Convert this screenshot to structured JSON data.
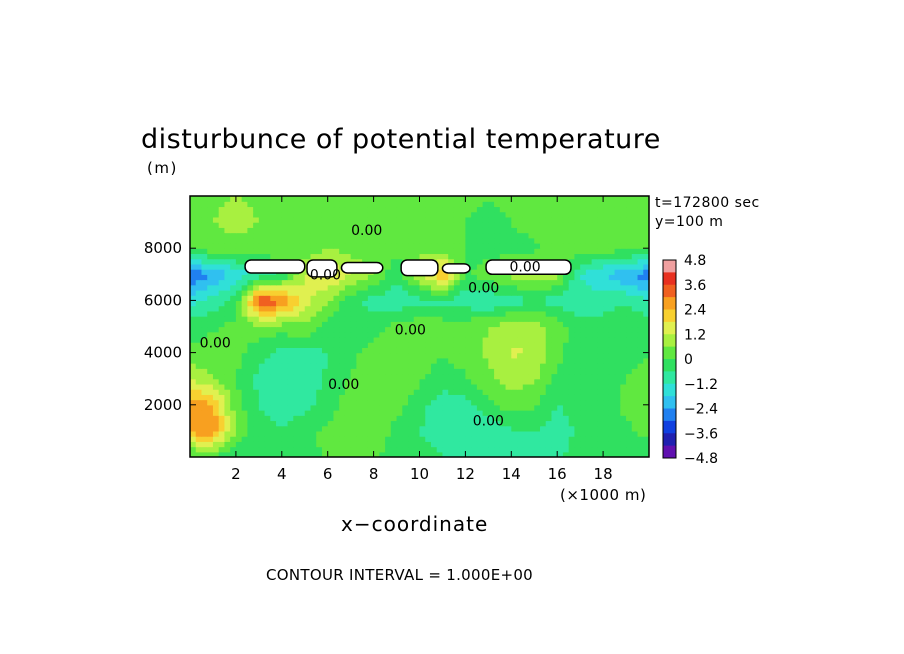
{
  "chart_data": {
    "type": "heatmap",
    "title": "disturbunce of potential temperature",
    "ylabel": "(m)",
    "xlabel": "x−coordinate",
    "xunit_label": "(×1000 m)",
    "annotations": [
      "t=172800 sec",
      "y=100 m"
    ],
    "footer": "CONTOUR INTERVAL = 1.000E+00",
    "xlim": [
      0,
      20000
    ],
    "ylim": [
      0,
      10000
    ],
    "x_ticks": [
      {
        "value": 2000,
        "label": "2"
      },
      {
        "value": 4000,
        "label": "4"
      },
      {
        "value": 6000,
        "label": "6"
      },
      {
        "value": 8000,
        "label": "8"
      },
      {
        "value": 10000,
        "label": "10"
      },
      {
        "value": 12000,
        "label": "12"
      },
      {
        "value": 14000,
        "label": "14"
      },
      {
        "value": 16000,
        "label": "16"
      },
      {
        "value": 18000,
        "label": "18"
      }
    ],
    "y_ticks": [
      {
        "value": 2000,
        "label": "2000"
      },
      {
        "value": 4000,
        "label": "4000"
      },
      {
        "value": 6000,
        "label": "6000"
      },
      {
        "value": 8000,
        "label": "8000"
      }
    ],
    "contour_labels": [
      {
        "text": "0.00",
        "x": 7700,
        "y": 8500
      },
      {
        "text": "0.00",
        "x": 9600,
        "y": 4700
      },
      {
        "text": "0.00",
        "x": 6700,
        "y": 2600
      },
      {
        "text": "0.00",
        "x": 12800,
        "y": 6300
      },
      {
        "text": "0.00",
        "x": 13000,
        "y": 1200
      },
      {
        "text": "0.00",
        "x": 14600,
        "y": 7100
      },
      {
        "text": "0.00",
        "x": 1100,
        "y": 4200
      },
      {
        "text": "0.00",
        "x": 5900,
        "y": 6800
      }
    ],
    "colorbar": {
      "min": -4.8,
      "max": 4.8,
      "tick_labels": [
        "4.8",
        "3.6",
        "2.4",
        "1.2",
        "0",
        "−1.2",
        "−2.4",
        "−3.6",
        "−4.8"
      ],
      "colors": [
        "#f0a0a0",
        "#e83020",
        "#f06020",
        "#f8a020",
        "#f8d030",
        "#e0f050",
        "#a8f040",
        "#60e840",
        "#30e060",
        "#30e8a0",
        "#30e0d8",
        "#30c0f0",
        "#2080f0",
        "#1040e0",
        "#2020b0",
        "#6010b0"
      ]
    },
    "field": {
      "grid_x": 21,
      "grid_y": 11,
      "x_unit_m": 1000,
      "values": [
        [
          -0.3,
          -0.2,
          -0.4,
          -0.3,
          -0.2,
          -0.1,
          0.0,
          0.1,
          0.0,
          -0.1,
          -0.3,
          -0.6,
          -0.6,
          -0.8,
          -1.0,
          -1.0,
          -0.7,
          -0.3,
          -0.2,
          -0.3,
          -0.5
        ],
        [
          2.6,
          2.9,
          0.4,
          -0.4,
          -0.5,
          -0.2,
          0.2,
          0.3,
          0.4,
          -0.2,
          -0.6,
          -0.9,
          -1.1,
          -1.2,
          -0.7,
          -0.6,
          -0.9,
          -0.5,
          -0.3,
          -0.1,
          0.2
        ],
        [
          2.8,
          2.5,
          0.3,
          -0.6,
          -1.0,
          -0.8,
          -0.3,
          0.3,
          0.6,
          0.2,
          -0.4,
          -0.9,
          -0.8,
          -0.2,
          0.3,
          0.1,
          -0.6,
          -0.4,
          -0.2,
          0.1,
          0.4
        ],
        [
          1.2,
          0.6,
          0.0,
          -0.8,
          -1.2,
          -1.0,
          -0.5,
          0.1,
          0.4,
          0.6,
          0.1,
          -0.4,
          -0.1,
          0.4,
          0.9,
          0.7,
          -0.2,
          -0.6,
          -0.2,
          0.0,
          0.2
        ],
        [
          0.1,
          0.4,
          0.2,
          -0.4,
          -0.8,
          -0.9,
          -0.6,
          -0.2,
          0.3,
          0.6,
          0.4,
          0.1,
          0.3,
          0.7,
          1.3,
          1.1,
          0.2,
          -0.5,
          -0.4,
          -0.2,
          0.0
        ],
        [
          -0.3,
          -0.1,
          0.2,
          0.4,
          0.3,
          0.5,
          -0.3,
          -0.6,
          -0.2,
          0.2,
          0.4,
          0.3,
          0.4,
          0.6,
          1.0,
          1.0,
          0.3,
          -0.3,
          -0.4,
          -0.2,
          -0.1
        ],
        [
          -1.4,
          -1.0,
          -0.4,
          3.6,
          3.2,
          1.4,
          0.6,
          -0.4,
          -0.8,
          -1.0,
          -0.8,
          -0.7,
          -1.0,
          -1.2,
          -0.9,
          -0.6,
          -0.9,
          -1.0,
          -0.8,
          -0.7,
          -1.2
        ],
        [
          -3.0,
          -2.4,
          -1.6,
          -1.0,
          -0.6,
          1.2,
          2.0,
          1.2,
          0.6,
          -0.4,
          1.0,
          2.6,
          -0.2,
          0.4,
          0.8,
          1.0,
          0.8,
          -1.2,
          -1.8,
          -2.4,
          -2.8
        ],
        [
          0.2,
          0.3,
          0.4,
          0.2,
          0.4,
          0.2,
          0.6,
          0.4,
          0.0,
          0.2,
          0.4,
          0.2,
          0.0,
          -0.3,
          -0.2,
          -0.1,
          0.2,
          0.4,
          0.3,
          0.2,
          0.2
        ],
        [
          0.5,
          0.6,
          0.8,
          0.6,
          0.4,
          0.3,
          0.3,
          0.5,
          0.2,
          0.1,
          0.3,
          0.2,
          0.0,
          -0.1,
          0.0,
          0.2,
          0.4,
          0.6,
          0.4,
          0.3,
          0.3
        ],
        [
          0.4,
          0.5,
          0.6,
          0.5,
          0.4,
          0.4,
          0.2,
          0.3,
          0.4,
          0.3,
          0.2,
          0.2,
          0.1,
          0.0,
          0.1,
          0.2,
          0.3,
          0.5,
          0.5,
          0.4,
          0.4
        ]
      ]
    },
    "masked_regions": [
      {
        "x0": 2400,
        "x1": 5000,
        "y0": 7050,
        "y1": 7550
      },
      {
        "x0": 5100,
        "x1": 6400,
        "y0": 6900,
        "y1": 7550
      },
      {
        "x0": 6600,
        "x1": 8400,
        "y0": 7050,
        "y1": 7450
      },
      {
        "x0": 9200,
        "x1": 10800,
        "y0": 6950,
        "y1": 7550
      },
      {
        "x0": 11000,
        "x1": 12200,
        "y0": 7050,
        "y1": 7400
      },
      {
        "x0": 12900,
        "x1": 16600,
        "y0": 7000,
        "y1": 7550
      }
    ]
  }
}
